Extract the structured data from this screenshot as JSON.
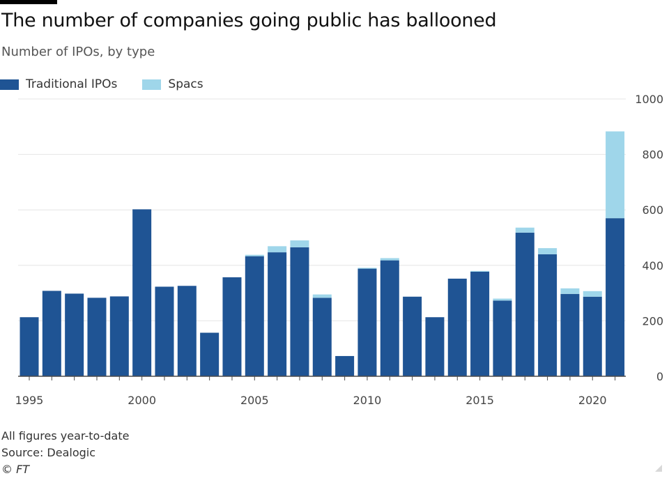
{
  "title": "The number of companies going public has ballooned",
  "subtitle": "Number of IPOs, by type",
  "colors": {
    "traditional": "#1f5494",
    "spacs": "#9fd6ea",
    "grid": "#e6e6e6",
    "axis": "#4a4a4a"
  },
  "footer": {
    "line1": "All figures year-to-date",
    "line2": "Source: Dealogic",
    "line3": "© FT"
  },
  "chart_data": {
    "type": "bar",
    "stacked": true,
    "categories": [
      1995,
      1996,
      1997,
      1998,
      1999,
      2000,
      2001,
      2002,
      2003,
      2004,
      2005,
      2006,
      2007,
      2008,
      2009,
      2010,
      2011,
      2012,
      2013,
      2014,
      2015,
      2016,
      2017,
      2018,
      2019,
      2020,
      2021
    ],
    "x_tick_labels": [
      "1995",
      "2000",
      "2005",
      "2010",
      "2015",
      "2020"
    ],
    "y_tick_labels": [
      "0",
      "200",
      "400",
      "600",
      "800",
      "1000"
    ],
    "ylim": [
      0,
      1000
    ],
    "y_axis_side": "right",
    "grid": true,
    "legend_position": "top-left",
    "series": [
      {
        "name": "Traditional IPOs",
        "color": "#1f5494",
        "values": [
          213,
          308,
          298,
          283,
          288,
          602,
          323,
          326,
          157,
          357,
          433,
          447,
          465,
          283,
          73,
          388,
          418,
          287,
          213,
          352,
          377,
          273,
          518,
          440,
          297,
          287,
          570
        ]
      },
      {
        "name": "Spacs",
        "color": "#9fd6ea",
        "values": [
          0,
          0,
          0,
          0,
          0,
          0,
          0,
          0,
          0,
          0,
          5,
          22,
          25,
          12,
          0,
          3,
          8,
          0,
          0,
          0,
          3,
          7,
          18,
          22,
          20,
          20,
          313
        ]
      }
    ]
  }
}
